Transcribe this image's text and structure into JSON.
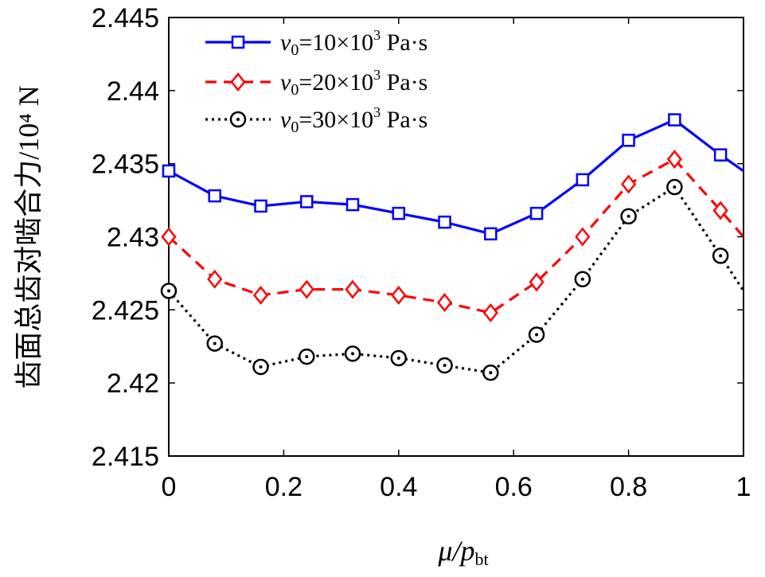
{
  "chart_data": {
    "type": "line",
    "title": "",
    "ylabel": "齿面总齿对啮合力/10⁴ N",
    "xlabel": "μ/p_bt",
    "xlabel_main": "μ/p",
    "xlabel_sub": "bt",
    "xlim": [
      0,
      1
    ],
    "ylim": [
      2.415,
      2.445
    ],
    "xticks": [
      0,
      0.2,
      0.4,
      0.6,
      0.8,
      1
    ],
    "xtick_labels": [
      "0",
      "0.2",
      "0.4",
      "0.6",
      "0.8",
      "1"
    ],
    "yticks": [
      2.415,
      2.42,
      2.425,
      2.43,
      2.435,
      2.44,
      2.445
    ],
    "ytick_labels": [
      "2.415",
      "2.42",
      "2.425",
      "2.43",
      "2.435",
      "2.44",
      "2.445"
    ],
    "grid": false,
    "legend_position": "top-left",
    "series": [
      {
        "name": "ν₀=10×10³ Pa·s",
        "color": "#0000ff",
        "marker": "square",
        "linestyle": "solid",
        "x": [
          0,
          0.08,
          0.16,
          0.24,
          0.32,
          0.4,
          0.48,
          0.56,
          0.64,
          0.72,
          0.8,
          0.88,
          0.96,
          1.0
        ],
        "y": [
          2.4345,
          2.4328,
          2.4321,
          2.4324,
          2.4322,
          2.4316,
          2.431,
          2.4302,
          2.4316,
          2.4339,
          2.4366,
          2.438,
          2.4356,
          2.4345
        ]
      },
      {
        "name": "ν₀=20×10³ Pa·s",
        "color": "#ff0000",
        "marker": "diamond",
        "linestyle": "dashed",
        "x": [
          0,
          0.08,
          0.16,
          0.24,
          0.32,
          0.4,
          0.48,
          0.56,
          0.64,
          0.72,
          0.8,
          0.88,
          0.96,
          1.0
        ],
        "y": [
          2.43,
          2.4271,
          2.426,
          2.4264,
          2.4264,
          2.426,
          2.4255,
          2.4248,
          2.4269,
          2.43,
          2.4336,
          2.4353,
          2.4318,
          2.43
        ]
      },
      {
        "name": "ν₀=30×10³ Pa·s",
        "color": "#000000",
        "marker": "circle",
        "linestyle": "dotted",
        "x": [
          0,
          0.08,
          0.16,
          0.24,
          0.32,
          0.4,
          0.48,
          0.56,
          0.64,
          0.72,
          0.8,
          0.88,
          0.96,
          1.0
        ],
        "y": [
          2.4263,
          2.4227,
          2.4211,
          2.4218,
          2.422,
          2.4217,
          2.4212,
          2.4207,
          2.4233,
          2.4271,
          2.4314,
          2.4334,
          2.4287,
          2.4263
        ]
      }
    ]
  },
  "legend": {
    "entries": [
      {
        "sym": "ν",
        "sub": "0",
        "rest": "=10×10",
        "sup": "3",
        "unit": " Pa·s"
      },
      {
        "sym": "ν",
        "sub": "0",
        "rest": "=20×10",
        "sup": "3",
        "unit": " Pa·s"
      },
      {
        "sym": "ν",
        "sub": "0",
        "rest": "=30×10",
        "sup": "3",
        "unit": " Pa·s"
      }
    ]
  }
}
